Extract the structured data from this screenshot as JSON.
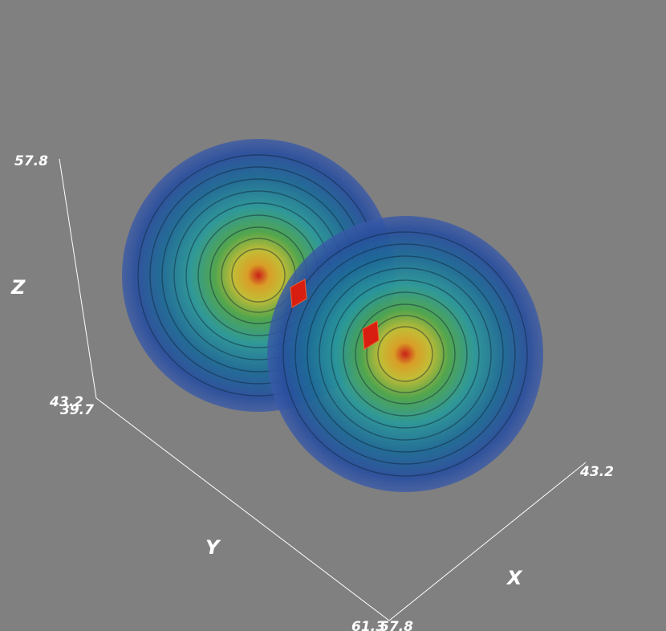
{
  "background": "#808080",
  "scene": {
    "type": "3d-isosurface-volume-render",
    "blob_count": 2,
    "colormap": [
      "#2a4aa0",
      "#1f6fa0",
      "#2fa0a0",
      "#4fa84a",
      "#c8c030",
      "#e06020",
      "#d01010"
    ],
    "core_color": "#d01010"
  },
  "axes": {
    "z": {
      "label": "Z",
      "max_label": "57.8",
      "min_label": "43.2"
    },
    "y": {
      "label": "Y",
      "max_label": "39.7",
      "min_label": "61.3"
    },
    "x": {
      "label": "X",
      "max_label": "43.2",
      "min_label": "57.8"
    }
  }
}
